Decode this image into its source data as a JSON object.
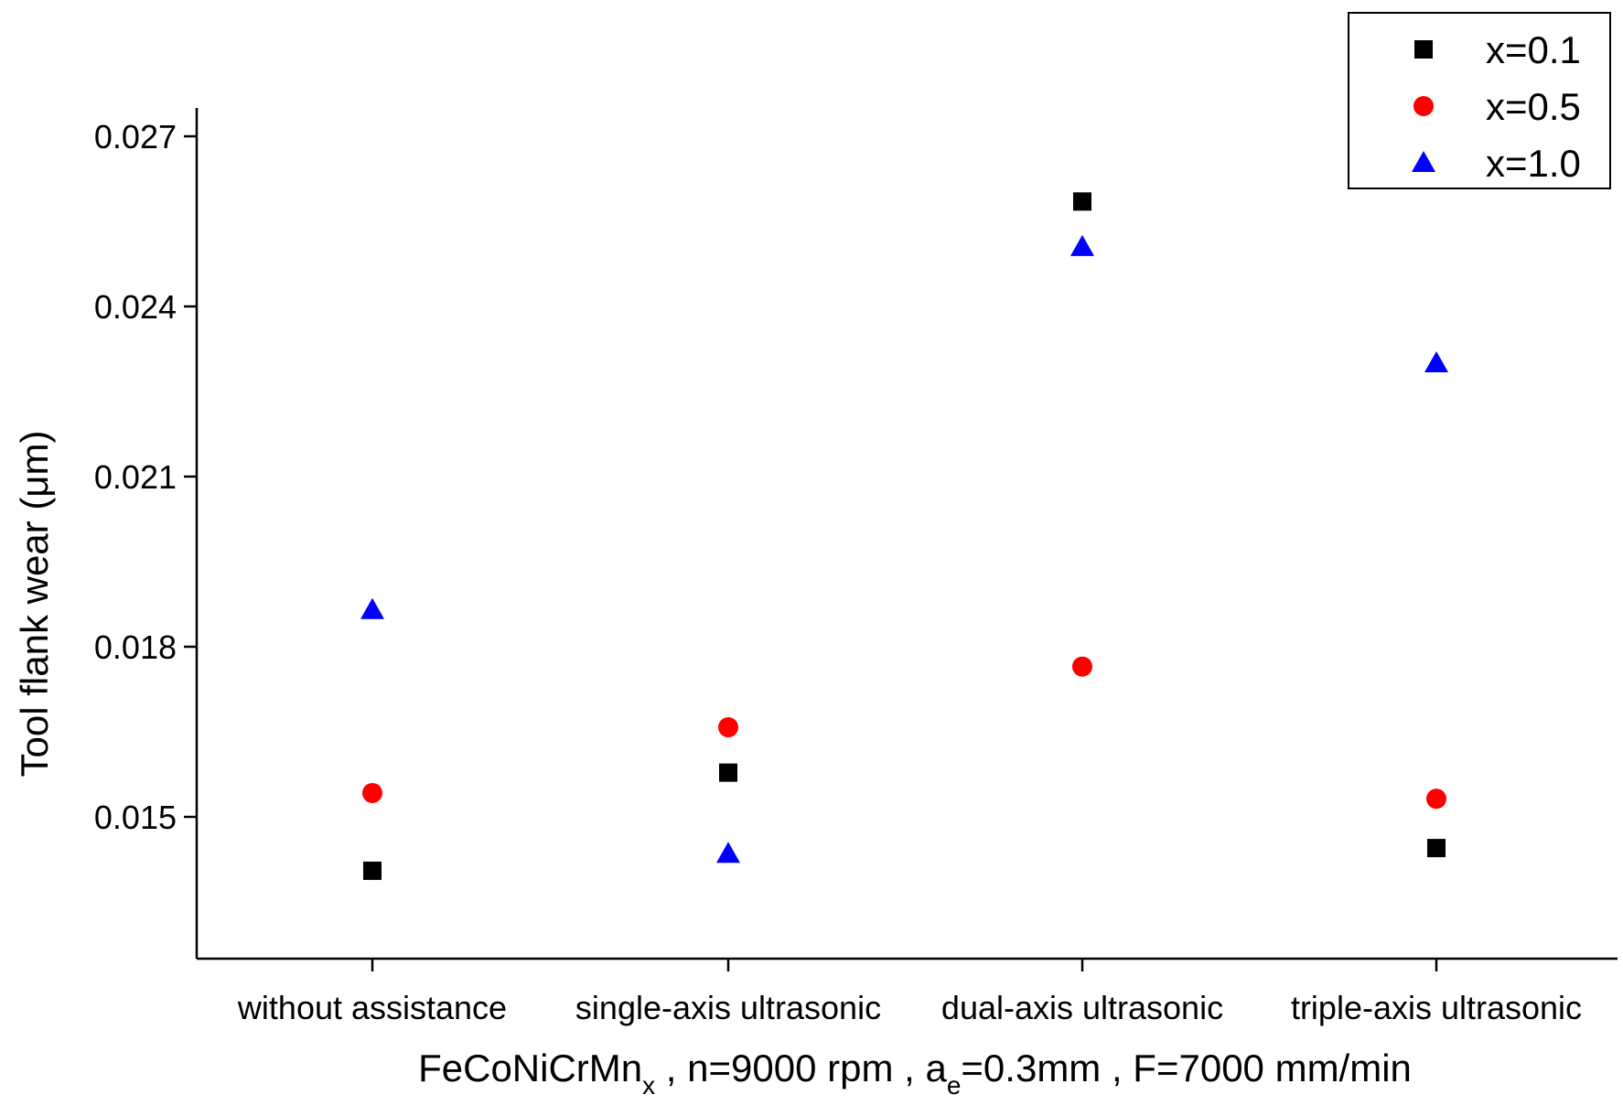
{
  "chart_data": {
    "type": "scatter",
    "title": "",
    "categories": [
      "without assistance",
      "single-axis ultrasonic",
      "dual-axis ultrasonic",
      "triple-axis ultrasonic"
    ],
    "series": [
      {
        "name": "x=0.1",
        "marker": "square",
        "color": "#000000",
        "values": [
          0.01405,
          0.01578,
          0.02585,
          0.01445
        ]
      },
      {
        "name": "x=0.5",
        "marker": "circle",
        "color": "#ff0000",
        "values": [
          0.01542,
          0.01658,
          0.01765,
          0.01532
        ]
      },
      {
        "name": "x=1.0",
        "marker": "triangle",
        "color": "#0000ff",
        "values": [
          0.01865,
          0.01435,
          0.02505,
          0.023
        ]
      }
    ],
    "ylabel": "Tool flank wear  (μm)",
    "xlabel": {
      "parts": [
        {
          "text": "FeCoNiCrMn",
          "style": "normal"
        },
        {
          "text": "x",
          "style": "sub"
        },
        {
          "text": " , n=9000 rpm , a",
          "style": "normal"
        },
        {
          "text": "e",
          "style": "sub"
        },
        {
          "text": "=0.3mm , F=7000 mm/min",
          "style": "normal"
        }
      ]
    },
    "ylim": [
      0.0125,
      0.0275
    ],
    "yticks": [
      "0.015",
      "0.018",
      "0.021",
      "0.024",
      "0.027"
    ],
    "legend_position": "top-right",
    "grid": false
  }
}
